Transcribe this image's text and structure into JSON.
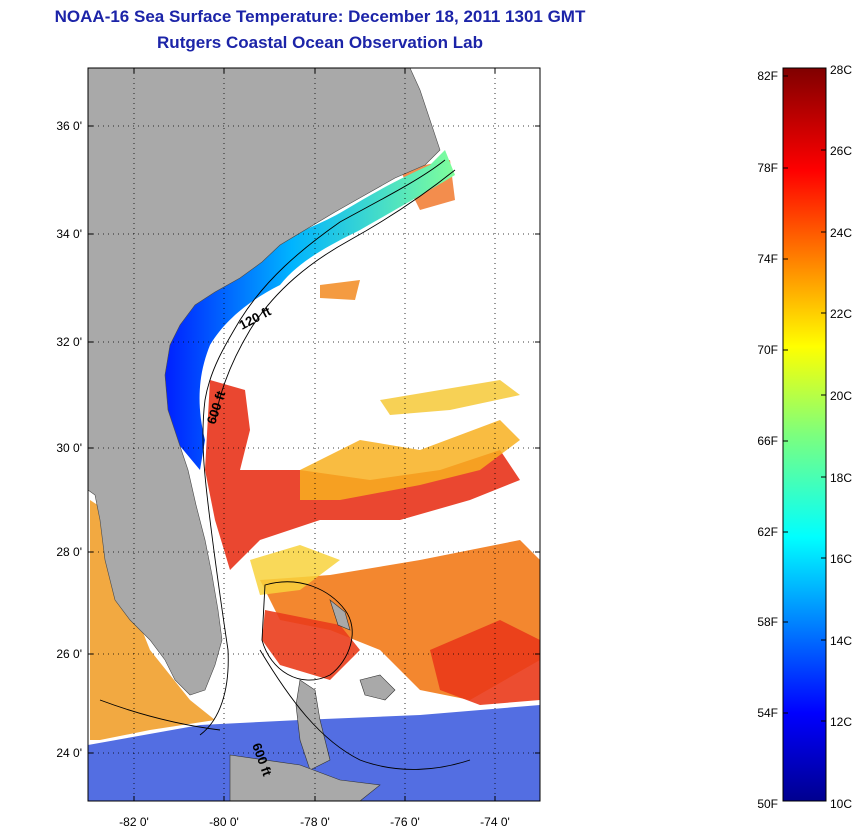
{
  "title": "NOAA-16 Sea Surface Temperature:  December 18, 2011 1301 GMT",
  "subtitle": "Rutgers Coastal Ocean Observation Lab",
  "map": {
    "lat_labels": [
      "36 0'",
      "34 0'",
      "32 0'",
      "30 0'",
      "28 0'",
      "26 0'",
      "24 0'"
    ],
    "lon_labels": [
      "-82 0'",
      "-80 0'",
      "-78 0'",
      "-76 0'",
      "-74 0'"
    ],
    "depth_labels": [
      "120 ft",
      "600 ft",
      "600 ft"
    ],
    "land_color": "#a9a9a9",
    "grid": "dotted"
  },
  "colorbar": {
    "fahrenheit_labels": [
      "82F",
      "78F",
      "74F",
      "70F",
      "66F",
      "62F",
      "58F",
      "54F",
      "50F"
    ],
    "celsius_labels": [
      "28C",
      "26C",
      "24C",
      "22C",
      "20C",
      "18C",
      "16C",
      "14C",
      "12C",
      "10C"
    ],
    "colormap": "jet"
  }
}
